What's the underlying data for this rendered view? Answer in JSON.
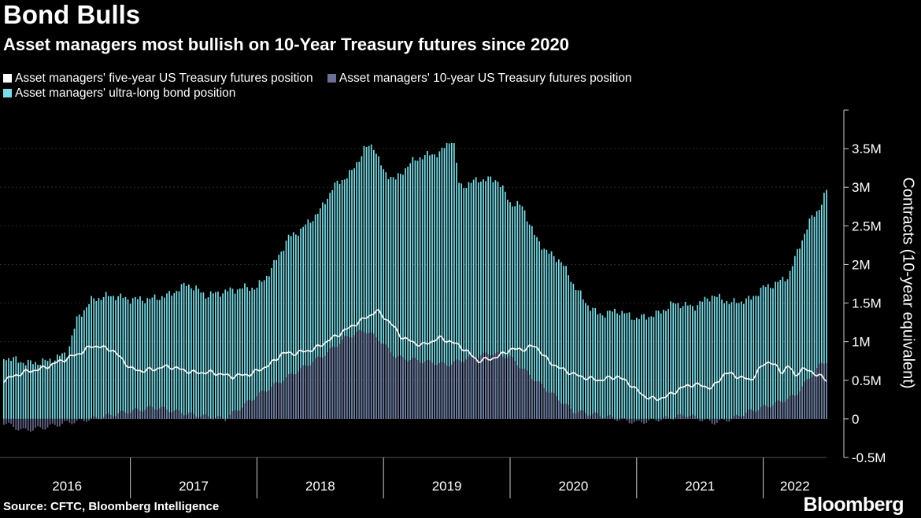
{
  "title": "Bond Bulls",
  "subtitle": "Asset managers most bullish on 10-Year Treasury futures since 2020",
  "source": "Source: CFTC, Bloomberg Intelligence",
  "brand": "Bloomberg",
  "colors": {
    "five_year": "#ffffff",
    "ten_year": "#6d6e95",
    "ultra_long": "#7bdde8",
    "axis": "#cccccc"
  },
  "legend": [
    {
      "label": "Asset managers' five-year US Treasury futures position",
      "color": "#ffffff"
    },
    {
      "label": "Asset managers' 10-year US Treasury futures position",
      "color": "#6d6e95"
    },
    {
      "label": "Asset managers' ultra-long bond position",
      "color": "#7bdde8"
    }
  ],
  "chart_data": {
    "type": "bar",
    "title": "Bond Bulls",
    "ylabel": "Contracts (10-year equivalent)",
    "ylim": [
      -0.5,
      4.0
    ],
    "yticks": [
      -0.5,
      0,
      0.5,
      1,
      1.5,
      2,
      2.5,
      3,
      3.5
    ],
    "ytick_labels": [
      "-0.5M",
      "0",
      "0.5M",
      "1M",
      "1.5M",
      "2M",
      "2.5M",
      "3M",
      "3.5M"
    ],
    "xlim": [
      2015.97,
      2022.5
    ],
    "x_labels": [
      {
        "label": "2016",
        "x": 2016.5
      },
      {
        "label": "2017",
        "x": 2017.5
      },
      {
        "label": "2018",
        "x": 2018.5
      },
      {
        "label": "2019",
        "x": 2019.5
      },
      {
        "label": "2020",
        "x": 2020.5
      },
      {
        "label": "2021",
        "x": 2021.5
      },
      {
        "label": "2022",
        "x": 2022.25
      }
    ],
    "year_dividers": [
      2017,
      2018,
      2019,
      2020,
      2021,
      2022
    ],
    "series": [
      {
        "name": "Asset managers' ultra-long bond position",
        "kind": "stacked-bar-total",
        "points": [
          [
            2016.0,
            0.8
          ],
          [
            2016.2,
            0.72
          ],
          [
            2016.35,
            0.75
          ],
          [
            2016.5,
            0.85
          ],
          [
            2016.58,
            1.3
          ],
          [
            2016.7,
            1.55
          ],
          [
            2016.85,
            1.6
          ],
          [
            2017.0,
            1.55
          ],
          [
            2017.15,
            1.55
          ],
          [
            2017.3,
            1.6
          ],
          [
            2017.45,
            1.75
          ],
          [
            2017.6,
            1.6
          ],
          [
            2017.75,
            1.65
          ],
          [
            2017.9,
            1.7
          ],
          [
            2018.0,
            1.7
          ],
          [
            2018.1,
            1.9
          ],
          [
            2018.25,
            2.35
          ],
          [
            2018.35,
            2.45
          ],
          [
            2018.5,
            2.7
          ],
          [
            2018.6,
            3.0
          ],
          [
            2018.75,
            3.2
          ],
          [
            2018.85,
            3.5
          ],
          [
            2018.92,
            3.55
          ],
          [
            2019.0,
            3.2
          ],
          [
            2019.1,
            3.1
          ],
          [
            2019.2,
            3.3
          ],
          [
            2019.3,
            3.4
          ],
          [
            2019.45,
            3.45
          ],
          [
            2019.55,
            3.65
          ],
          [
            2019.6,
            3.0
          ],
          [
            2019.75,
            3.1
          ],
          [
            2019.9,
            3.1
          ],
          [
            2020.0,
            2.8
          ],
          [
            2020.1,
            2.75
          ],
          [
            2020.2,
            2.35
          ],
          [
            2020.3,
            2.15
          ],
          [
            2020.4,
            2.05
          ],
          [
            2020.5,
            1.75
          ],
          [
            2020.6,
            1.5
          ],
          [
            2020.7,
            1.35
          ],
          [
            2020.85,
            1.4
          ],
          [
            2021.0,
            1.3
          ],
          [
            2021.15,
            1.35
          ],
          [
            2021.3,
            1.5
          ],
          [
            2021.45,
            1.45
          ],
          [
            2021.6,
            1.6
          ],
          [
            2021.75,
            1.5
          ],
          [
            2021.9,
            1.55
          ],
          [
            2022.0,
            1.7
          ],
          [
            2022.1,
            1.75
          ],
          [
            2022.2,
            1.85
          ],
          [
            2022.3,
            2.3
          ],
          [
            2022.38,
            2.6
          ],
          [
            2022.45,
            2.75
          ],
          [
            2022.5,
            2.95
          ]
        ]
      },
      {
        "name": "Asset managers' 10-year US Treasury futures position",
        "kind": "bar",
        "points": [
          [
            2016.0,
            -0.05
          ],
          [
            2016.15,
            -0.15
          ],
          [
            2016.3,
            -0.12
          ],
          [
            2016.5,
            -0.05
          ],
          [
            2016.7,
            0.0
          ],
          [
            2016.85,
            0.05
          ],
          [
            2017.0,
            0.1
          ],
          [
            2017.2,
            0.15
          ],
          [
            2017.5,
            0.05
          ],
          [
            2017.75,
            0.0
          ],
          [
            2018.0,
            0.3
          ],
          [
            2018.2,
            0.5
          ],
          [
            2018.4,
            0.7
          ],
          [
            2018.55,
            0.85
          ],
          [
            2018.7,
            1.05
          ],
          [
            2018.85,
            1.15
          ],
          [
            2018.95,
            1.05
          ],
          [
            2019.1,
            0.8
          ],
          [
            2019.3,
            0.75
          ],
          [
            2019.5,
            0.7
          ],
          [
            2019.7,
            0.8
          ],
          [
            2019.85,
            0.85
          ],
          [
            2020.0,
            0.8
          ],
          [
            2020.2,
            0.5
          ],
          [
            2020.35,
            0.3
          ],
          [
            2020.5,
            0.1
          ],
          [
            2020.7,
            0.05
          ],
          [
            2020.85,
            0.0
          ],
          [
            2021.0,
            -0.05
          ],
          [
            2021.2,
            0.0
          ],
          [
            2021.4,
            0.05
          ],
          [
            2021.6,
            -0.05
          ],
          [
            2021.75,
            0.0
          ],
          [
            2021.9,
            0.1
          ],
          [
            2022.1,
            0.2
          ],
          [
            2022.25,
            0.3
          ],
          [
            2022.35,
            0.5
          ],
          [
            2022.45,
            0.7
          ],
          [
            2022.5,
            0.75
          ]
        ]
      },
      {
        "name": "Asset managers' five-year US Treasury futures position",
        "kind": "line",
        "points": [
          [
            2016.0,
            0.5
          ],
          [
            2016.15,
            0.6
          ],
          [
            2016.3,
            0.65
          ],
          [
            2016.45,
            0.75
          ],
          [
            2016.6,
            0.85
          ],
          [
            2016.7,
            0.95
          ],
          [
            2016.85,
            0.9
          ],
          [
            2016.95,
            0.75
          ],
          [
            2017.0,
            0.65
          ],
          [
            2017.1,
            0.62
          ],
          [
            2017.3,
            0.68
          ],
          [
            2017.5,
            0.6
          ],
          [
            2017.65,
            0.6
          ],
          [
            2017.8,
            0.55
          ],
          [
            2017.95,
            0.58
          ],
          [
            2018.1,
            0.7
          ],
          [
            2018.2,
            0.85
          ],
          [
            2018.3,
            0.85
          ],
          [
            2018.45,
            0.9
          ],
          [
            2018.6,
            1.05
          ],
          [
            2018.7,
            1.15
          ],
          [
            2018.85,
            1.3
          ],
          [
            2018.95,
            1.4
          ],
          [
            2019.05,
            1.25
          ],
          [
            2019.15,
            1.05
          ],
          [
            2019.3,
            0.95
          ],
          [
            2019.45,
            1.05
          ],
          [
            2019.6,
            0.95
          ],
          [
            2019.75,
            0.75
          ],
          [
            2019.9,
            0.8
          ],
          [
            2020.0,
            0.9
          ],
          [
            2020.1,
            0.9
          ],
          [
            2020.2,
            0.95
          ],
          [
            2020.3,
            0.75
          ],
          [
            2020.4,
            0.65
          ],
          [
            2020.55,
            0.55
          ],
          [
            2020.7,
            0.5
          ],
          [
            2020.85,
            0.55
          ],
          [
            2020.95,
            0.45
          ],
          [
            2021.05,
            0.3
          ],
          [
            2021.15,
            0.25
          ],
          [
            2021.25,
            0.3
          ],
          [
            2021.35,
            0.4
          ],
          [
            2021.45,
            0.45
          ],
          [
            2021.6,
            0.4
          ],
          [
            2021.7,
            0.6
          ],
          [
            2021.8,
            0.55
          ],
          [
            2021.9,
            0.5
          ],
          [
            2022.0,
            0.7
          ],
          [
            2022.05,
            0.75
          ],
          [
            2022.15,
            0.6
          ],
          [
            2022.2,
            0.7
          ],
          [
            2022.25,
            0.55
          ],
          [
            2022.3,
            0.65
          ],
          [
            2022.4,
            0.6
          ],
          [
            2022.45,
            0.55
          ],
          [
            2022.5,
            0.5
          ]
        ]
      }
    ]
  }
}
